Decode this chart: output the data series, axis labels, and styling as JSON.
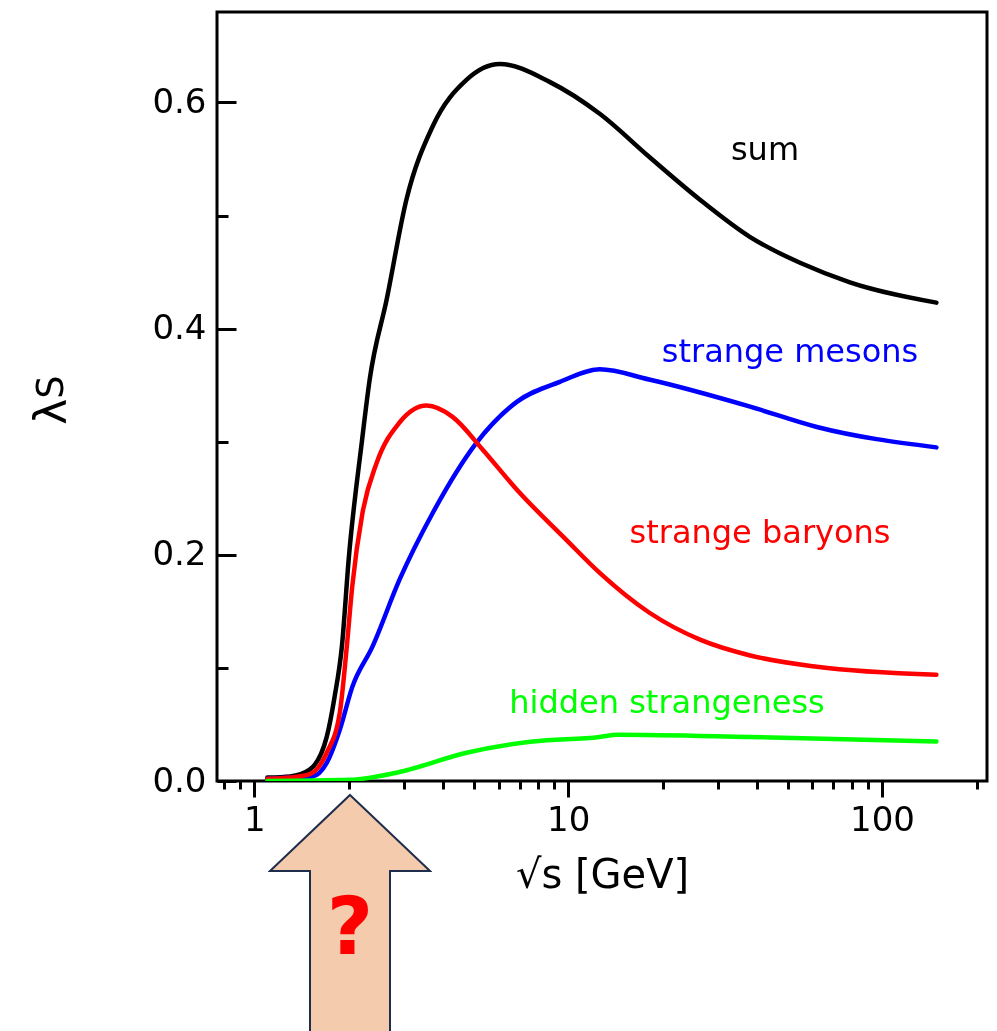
{
  "chart_data": {
    "type": "line",
    "xlabel": "√s [GeV]",
    "ylabel": "λ$_{S}$",
    "log": "x",
    "xlim": [
      0.76,
      216
    ],
    "ylim": [
      0,
      0.68
    ],
    "xticks": [
      {
        "value": 0.8,
        "label": null
      },
      {
        "value": 0.9,
        "label": null
      },
      1,
      {
        "value": 2,
        "label": null
      },
      {
        "value": 3,
        "label": null
      },
      {
        "value": 4,
        "label": null
      },
      {
        "value": 5,
        "label": null
      },
      {
        "value": 6,
        "label": null
      },
      {
        "value": 7,
        "label": null
      },
      {
        "value": 8,
        "label": null
      },
      {
        "value": 9,
        "label": null
      },
      10,
      {
        "value": 20,
        "label": null
      },
      {
        "value": 30,
        "label": null
      },
      {
        "value": 40,
        "label": null
      },
      {
        "value": 50,
        "label": null
      },
      {
        "value": 60,
        "label": null
      },
      {
        "value": 70,
        "label": null
      },
      {
        "value": 80,
        "label": null
      },
      {
        "value": 90,
        "label": null
      },
      100,
      {
        "value": 200,
        "label": null
      }
    ],
    "yticks": [
      {
        "value": 0,
        "label": "0.0"
      },
      {
        "value": 0.1,
        "label": null
      },
      {
        "value": 0.2,
        "label": "0.2"
      },
      {
        "value": 0.3,
        "label": null
      },
      {
        "value": 0.4,
        "label": "0.4"
      },
      {
        "value": 0.5,
        "label": null
      },
      {
        "value": 0.6,
        "label": "0.6"
      }
    ],
    "grid": false,
    "marker": "none",
    "line_style": "solid",
    "annotations": [
      "?"
    ],
    "series": [
      {
        "name": "sum",
        "color": "#000000",
        "x": [
          1.1,
          1.3,
          1.5,
          1.7,
          1.8,
          1.9,
          2.0,
          2.2,
          2.33,
          2.64,
          3.05,
          3.7,
          4.74,
          6.05,
          8.75,
          12.6,
          18.1,
          26.3,
          38,
          55,
          79,
          149
        ],
        "values": [
          0.003,
          0.004,
          0.01,
          0.039,
          0.074,
          0.119,
          0.198,
          0.3,
          0.355,
          0.426,
          0.514,
          0.579,
          0.62,
          0.634,
          0.618,
          0.59,
          0.552,
          0.514,
          0.481,
          0.458,
          0.441,
          0.423
        ]
      },
      {
        "name": "strange mesons",
        "color": "#0000ff",
        "x": [
          1.1,
          1.3,
          1.53,
          1.7,
          1.87,
          2.05,
          2.38,
          2.9,
          3.7,
          5.1,
          6.84,
          9.41,
          12.6,
          18.1,
          38,
          62,
          149
        ],
        "values": [
          0.002,
          0.003,
          0.004,
          0.016,
          0.045,
          0.083,
          0.119,
          0.178,
          0.237,
          0.299,
          0.335,
          0.353,
          0.364,
          0.355,
          0.331,
          0.313,
          0.295
        ]
      },
      {
        "name": "strange baryons",
        "color": "#ff0000",
        "x": [
          1.1,
          1.3,
          1.5,
          1.7,
          1.87,
          1.97,
          2.05,
          2.21,
          2.45,
          2.9,
          3.54,
          4.28,
          5.34,
          6.84,
          9.88,
          12.6,
          18.1,
          26.3,
          38,
          62,
          149
        ],
        "values": [
          0.002,
          0.003,
          0.006,
          0.025,
          0.06,
          0.119,
          0.172,
          0.237,
          0.281,
          0.317,
          0.332,
          0.322,
          0.293,
          0.258,
          0.213,
          0.184,
          0.149,
          0.125,
          0.111,
          0.101,
          0.094
        ]
      },
      {
        "name": "hidden strangeness",
        "color": "#00ff00",
        "x": [
          1.1,
          2.01,
          2.9,
          4.74,
          7.7,
          12.6,
          14.3,
          38,
          149
        ],
        "values": [
          0,
          0.001,
          0.008,
          0.025,
          0.035,
          0.039,
          0.041,
          0.039,
          0.035
        ]
      }
    ]
  }
}
